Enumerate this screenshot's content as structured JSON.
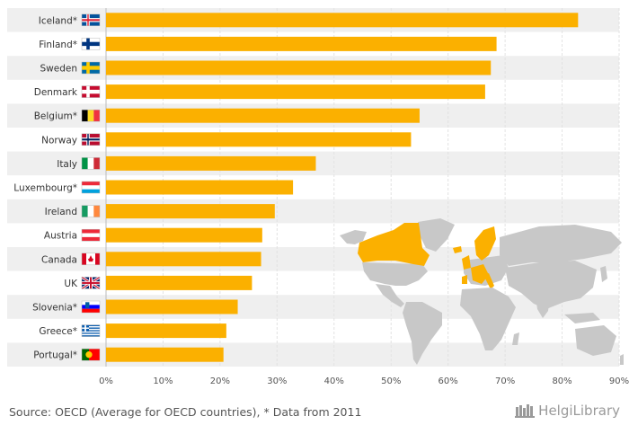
{
  "chart_data": {
    "type": "bar",
    "orientation": "horizontal",
    "categories": [
      "Iceland*",
      "Finland*",
      "Sweden",
      "Denmark",
      "Belgium*",
      "Norway",
      "Italy",
      "Luxembourg*",
      "Ireland",
      "Austria",
      "Canada",
      "UK",
      "Slovenia*",
      "Greece*",
      "Portugal*"
    ],
    "values": [
      82.8,
      68.5,
      67.5,
      66.5,
      55.0,
      53.5,
      36.8,
      32.8,
      29.6,
      27.4,
      27.2,
      25.6,
      23.1,
      21.1,
      20.6
    ],
    "xlim": [
      0,
      90
    ],
    "xticks": [
      "0%",
      "10%",
      "20%",
      "30%",
      "40%",
      "50%",
      "60%",
      "70%",
      "80%",
      "90%"
    ],
    "bar_color": "#FBB000",
    "title": "",
    "xlabel": "",
    "ylabel": ""
  },
  "flags": [
    {
      "country": "Iceland*",
      "flag": "flag-iceland"
    },
    {
      "country": "Finland*",
      "flag": "flag-finland"
    },
    {
      "country": "Sweden",
      "flag": "flag-sweden"
    },
    {
      "country": "Denmark",
      "flag": "flag-denmark"
    },
    {
      "country": "Belgium*",
      "flag": "flag-belgium"
    },
    {
      "country": "Norway",
      "flag": "flag-norway"
    },
    {
      "country": "Italy",
      "flag": "flag-italy"
    },
    {
      "country": "Luxembourg*",
      "flag": "flag-luxembourg"
    },
    {
      "country": "Ireland",
      "flag": "flag-ireland"
    },
    {
      "country": "Austria",
      "flag": "flag-austria"
    },
    {
      "country": "Canada",
      "flag": "flag-canada"
    },
    {
      "country": "UK",
      "flag": "flag-uk"
    },
    {
      "country": "Slovenia*",
      "flag": "flag-slovenia"
    },
    {
      "country": "Greece*",
      "flag": "flag-greece"
    },
    {
      "country": "Portugal*",
      "flag": "flag-portugal"
    }
  ],
  "footer": {
    "source": "Source: OECD (Average for OECD countries), * Data from 2011",
    "logo_text": "HelgiLibrary"
  },
  "colors": {
    "bar": "#FBB000",
    "row_shade": "#EFEFEF",
    "map_land": "#C8C8C8",
    "map_highlight": "#FBB000",
    "text": "#333333"
  }
}
